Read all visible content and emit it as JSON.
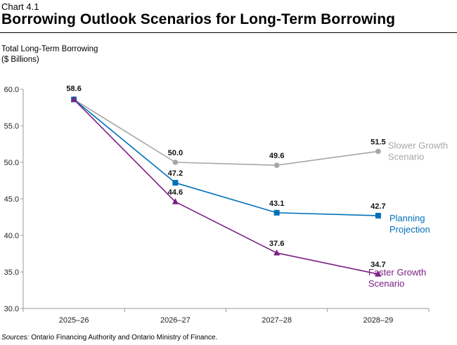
{
  "header": {
    "chart_number": "Chart 4.1",
    "title": "Borrowing Outlook Scenarios for Long-Term Borrowing"
  },
  "footer": {
    "sources_label": "Sources:",
    "sources_text": " Ontario Financing Authority and Ontario Ministry of Finance."
  },
  "chart_data": {
    "type": "line",
    "ylabel_line1": "Total Long-Term Borrowing",
    "ylabel_line2": "($ Billions)",
    "categories": [
      "2025–26",
      "2026–27",
      "2027–28",
      "2028–29"
    ],
    "ylim": [
      30,
      60
    ],
    "yticks": [
      60,
      55,
      50,
      45,
      40,
      35,
      30
    ],
    "ytick_labels": [
      "60.0",
      "55.0",
      "50.0",
      "45.0",
      "40.0",
      "35.0",
      "30.0"
    ],
    "grid": false,
    "series": [
      {
        "name_line1": "Slower Growth",
        "name_line2": "Scenario",
        "values": [
          58.6,
          50.0,
          49.6,
          51.5
        ],
        "labels": [
          "",
          "50.0",
          "49.6",
          "51.5"
        ],
        "color": "#a6a6a6",
        "marker": "circle"
      },
      {
        "name_line1": "Planning",
        "name_line2": "Projection",
        "values": [
          58.6,
          47.2,
          43.1,
          42.7
        ],
        "labels": [
          "58.6",
          "47.2",
          "43.1",
          "42.7"
        ],
        "color": "#0070b8",
        "marker": "square"
      },
      {
        "name_line1": "Faster Growth",
        "name_line2": "Scenario",
        "values": [
          58.6,
          44.6,
          37.6,
          34.7
        ],
        "labels": [
          "",
          "44.6",
          "37.6",
          "34.7"
        ],
        "color": "#7b1f85",
        "marker": "triangle"
      }
    ]
  }
}
